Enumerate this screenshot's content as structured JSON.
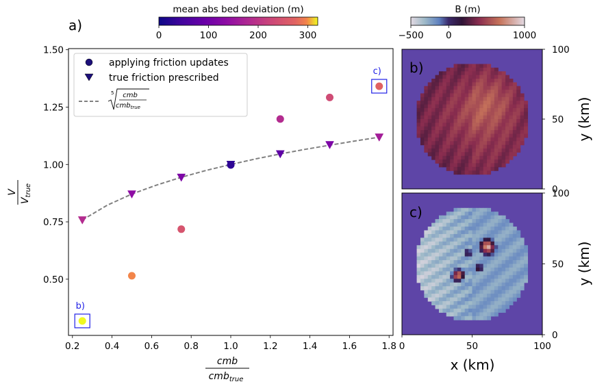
{
  "colors": {
    "panel_bg": "#5e45a7",
    "legend_border": "#cccccc",
    "highlight_box": "#1f1fe6",
    "highlight_text": "#1f1fe6",
    "fit_line": "#808080"
  },
  "colorbars": {
    "deviation": {
      "title": "mean abs bed deviation (m)",
      "ticks": [
        "0",
        "100",
        "200",
        "300"
      ],
      "tick_values": [
        0,
        100,
        200,
        300
      ],
      "range": [
        0,
        320
      ],
      "colormap": "plasma"
    },
    "bed": {
      "title": "B (m)",
      "ticks": [
        "−500",
        "0",
        "1000"
      ],
      "tick_values": [
        -500,
        0,
        1000
      ],
      "range": [
        -500,
        1000
      ],
      "colormap": "twilight"
    }
  },
  "panels": {
    "a_label": "a)",
    "b_label": "b)",
    "c_label": "c)"
  },
  "chart_data": [
    {
      "type": "scatter",
      "panel": "a)",
      "xlabel_num": "cmb",
      "xlabel_den": "cmb",
      "xlabel_den_sub": "true",
      "ylabel_num": "V",
      "ylabel_den": "V",
      "ylabel_den_sub": "true",
      "xlim": [
        0.18,
        1.82
      ],
      "ylim": [
        0.255,
        1.505
      ],
      "xticks": [
        0.2,
        0.4,
        0.6,
        0.8,
        1.0,
        1.2,
        1.4,
        1.6,
        1.8
      ],
      "xtick_labels": [
        "0.2",
        "0.4",
        "0.6",
        "0.8",
        "1.0",
        "1.2",
        "1.4",
        "1.6",
        "1.8"
      ],
      "yticks": [
        0.5,
        0.75,
        1.0,
        1.25,
        1.5
      ],
      "ytick_labels": [
        "0.50",
        "0.75",
        "1.00",
        "1.25",
        "1.50"
      ],
      "legend_position": "top-left",
      "series": [
        {
          "name": "applying friction updates",
          "marker": "circle",
          "x": [
            0.25,
            0.5,
            0.75,
            1.0,
            1.25,
            1.5,
            1.75
          ],
          "y": [
            0.318,
            0.515,
            0.718,
            0.998,
            1.198,
            1.292,
            1.341
          ],
          "color_values": [
            320,
            225,
            175,
            20,
            130,
            165,
            190
          ]
        },
        {
          "name": "true friction prescribed",
          "marker": "triangle-down",
          "x": [
            0.25,
            0.5,
            0.75,
            1.0,
            1.25,
            1.5,
            1.75
          ],
          "y": [
            0.758,
            0.871,
            0.944,
            1.0,
            1.046,
            1.086,
            1.119
          ],
          "color_values": [
            130,
            95,
            80,
            20,
            55,
            80,
            115
          ]
        },
        {
          "name": "fit",
          "legend_index": "5",
          "legend_num": "cmb",
          "legend_den": "cmb",
          "legend_den_sub": "true",
          "style": "dashed",
          "x": [
            0.25,
            0.375,
            0.5,
            0.625,
            0.75,
            0.875,
            1.0,
            1.125,
            1.25,
            1.375,
            1.5,
            1.625,
            1.75
          ],
          "y": [
            0.758,
            0.822,
            0.871,
            0.91,
            0.944,
            0.974,
            1.0,
            1.024,
            1.046,
            1.066,
            1.084,
            1.102,
            1.119
          ]
        }
      ],
      "annotations": [
        {
          "text": "b)",
          "x": 0.25,
          "y": 0.318
        },
        {
          "text": "c)",
          "x": 1.75,
          "y": 1.341
        }
      ]
    },
    {
      "type": "heatmap",
      "panel": "b)",
      "xlim": [
        0,
        100
      ],
      "ylim": [
        0,
        100
      ],
      "yticks": [
        0,
        50,
        100
      ],
      "ytick_labels": [
        "0",
        "50",
        "100"
      ],
      "ylabel": "y (km)",
      "description_values": {
        "grid_size": 38,
        "circle_center": [
          50,
          50
        ],
        "circle_radius": 40
      }
    },
    {
      "type": "heatmap",
      "panel": "c)",
      "xlim": [
        0,
        100
      ],
      "ylim": [
        0,
        100
      ],
      "xticks": [
        0,
        50,
        100
      ],
      "xtick_labels": [
        "0",
        "50",
        "100"
      ],
      "yticks": [
        0,
        50,
        100
      ],
      "ytick_labels": [
        "0",
        "50",
        "100"
      ],
      "xlabel": "x (km)",
      "ylabel": "y (km)",
      "description_values": {
        "grid_size": 38,
        "circle_center": [
          50,
          50
        ],
        "circle_radius": 40
      }
    }
  ]
}
